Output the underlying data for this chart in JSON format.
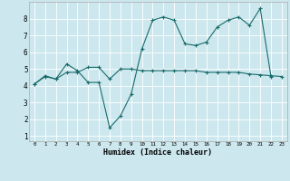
{
  "title": "",
  "xlabel": "Humidex (Indice chaleur)",
  "background_color": "#cce8ee",
  "line_color": "#1a6b6b",
  "grid_color": "#ffffff",
  "xlim": [
    -0.5,
    23.5
  ],
  "ylim": [
    0.7,
    9.0
  ],
  "xtick_labels": [
    "0",
    "1",
    "2",
    "3",
    "4",
    "5",
    "6",
    "7",
    "8",
    "9",
    "10",
    "11",
    "12",
    "13",
    "14",
    "15",
    "16",
    "17",
    "18",
    "19",
    "20",
    "21",
    "22",
    "23"
  ],
  "ytick_labels": [
    "1",
    "2",
    "3",
    "4",
    "5",
    "6",
    "7",
    "8"
  ],
  "ytick_vals": [
    1,
    2,
    3,
    4,
    5,
    6,
    7,
    8
  ],
  "series1_x": [
    0,
    1,
    2,
    3,
    4,
    5,
    6,
    7,
    8,
    9,
    10,
    11,
    12,
    13,
    14,
    15,
    16,
    17,
    18,
    19,
    20,
    21,
    22
  ],
  "series1_y": [
    4.1,
    4.6,
    4.4,
    5.3,
    4.9,
    4.2,
    4.2,
    1.5,
    2.2,
    3.5,
    6.2,
    7.9,
    8.1,
    7.9,
    6.5,
    6.4,
    6.6,
    7.5,
    7.9,
    8.1,
    7.6,
    8.6,
    4.55
  ],
  "series2_x": [
    0,
    1,
    2,
    3,
    4,
    5,
    6,
    7,
    8,
    9,
    10,
    11,
    12,
    13,
    14,
    15,
    16,
    17,
    18,
    19,
    20,
    21,
    22,
    23
  ],
  "series2_y": [
    4.1,
    4.55,
    4.4,
    4.8,
    4.8,
    5.1,
    5.1,
    4.4,
    5.0,
    5.0,
    4.9,
    4.9,
    4.9,
    4.9,
    4.9,
    4.9,
    4.8,
    4.8,
    4.8,
    4.8,
    4.7,
    4.65,
    4.6,
    4.55
  ],
  "marker": "+",
  "markersize": 3,
  "linewidth": 0.8
}
